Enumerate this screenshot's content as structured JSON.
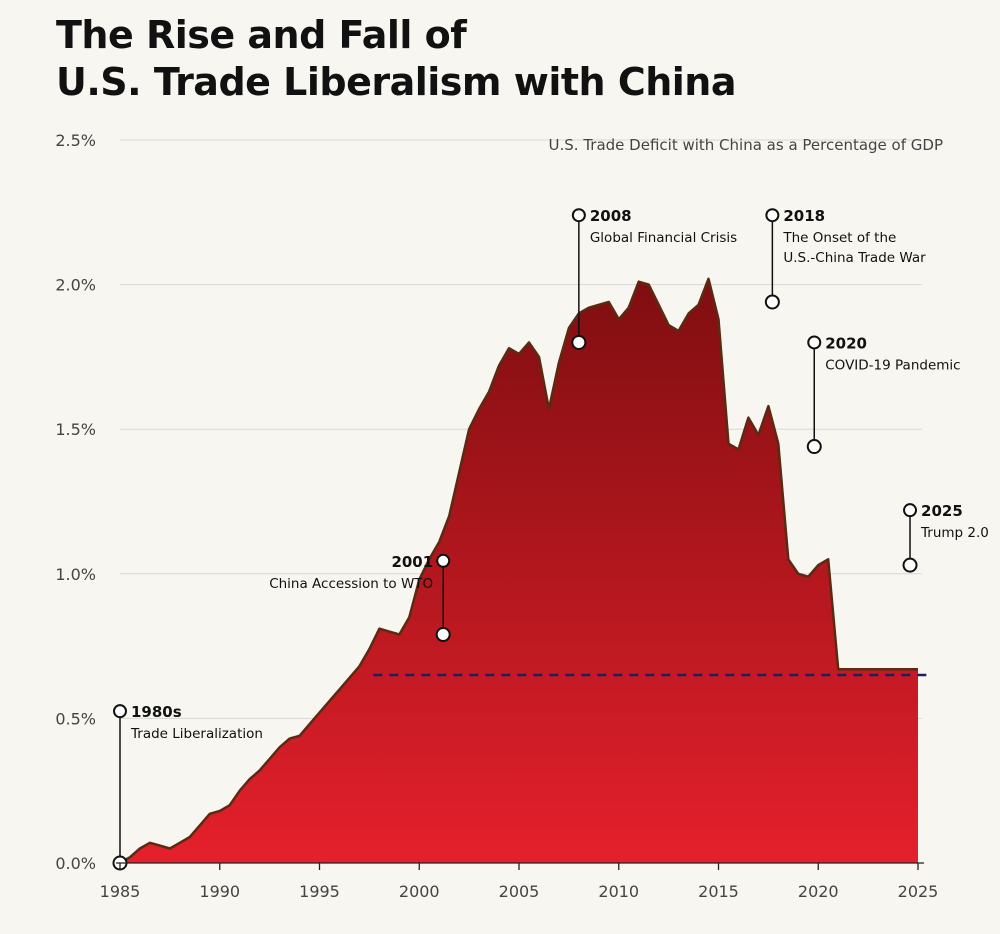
{
  "title_lines": [
    "The Rise and Fall of",
    "U.S. Trade Liberalism with China"
  ],
  "colors": {
    "background": "#f7f6f1",
    "area_top": "#7f0e10",
    "area_bottom": "#e5202c",
    "area_outline": "#5a2a12",
    "reference_line": "#1f1f5f",
    "text": "#111111",
    "axis_text": "#444444",
    "grid": "#d8d8d2"
  },
  "chart_data": {
    "type": "area",
    "subtitle": "U.S. Trade Deficit with China as a Percentage of GDP",
    "xlabel": "",
    "ylabel": "",
    "xlim": [
      1985,
      2025
    ],
    "ylim": [
      0,
      2.5
    ],
    "x_ticks": [
      1985,
      1990,
      1995,
      2000,
      2005,
      2010,
      2015,
      2020,
      2025
    ],
    "y_ticks": [
      {
        "value": 0,
        "label": "0.0%"
      },
      {
        "value": 0.5,
        "label": "0.5%"
      },
      {
        "value": 1.0,
        "label": "1.0%"
      },
      {
        "value": 1.5,
        "label": "1.5%"
      },
      {
        "value": 2.0,
        "label": "2.0%"
      },
      {
        "value": 2.5,
        "label": "2.5%"
      }
    ],
    "grid": "horizontal",
    "series": [
      {
        "x": [
          1985,
          1985.5,
          1986,
          1986.5,
          1987,
          1987.5,
          1988,
          1988.5,
          1989,
          1989.5,
          1990,
          1990.5,
          1991,
          1991.5,
          1992,
          1992.5,
          1993,
          1993.5,
          1994,
          1994.5,
          1995,
          1995.5,
          1996,
          1996.5,
          1997,
          1997.5,
          1998,
          1998.5,
          1999,
          1999.5,
          2000,
          2000.5,
          2001,
          2001.5,
          2002,
          2002.5,
          2003,
          2003.5,
          2004,
          2004.5,
          2005,
          2005.5,
          2006,
          2006.5,
          2007,
          2007.5,
          2008,
          2008.5,
          2009,
          2009.5,
          2010,
          2010.5,
          2011,
          2011.5,
          2012,
          2012.5,
          2013,
          2013.5,
          2014,
          2014.5,
          2015,
          2015.5,
          2016,
          2016.5,
          2017,
          2017.5,
          2018,
          2018.5,
          2019,
          2019.5,
          2020,
          2020.5,
          2021,
          2021.5,
          2022,
          2022.5,
          2023,
          2023.5,
          2024,
          2024.5,
          2025
        ],
        "values": [
          0.0,
          0.02,
          0.05,
          0.07,
          0.06,
          0.05,
          0.07,
          0.09,
          0.13,
          0.17,
          0.18,
          0.2,
          0.25,
          0.29,
          0.32,
          0.36,
          0.4,
          0.43,
          0.44,
          0.48,
          0.52,
          0.56,
          0.6,
          0.64,
          0.68,
          0.74,
          0.81,
          0.8,
          0.79,
          0.85,
          0.98,
          1.05,
          1.11,
          1.2,
          1.35,
          1.5,
          1.57,
          1.63,
          1.72,
          1.78,
          1.76,
          1.8,
          1.75,
          1.57,
          1.73,
          1.85,
          1.9,
          1.92,
          1.93,
          1.94,
          1.88,
          1.92,
          2.01,
          2.0,
          1.93,
          1.86,
          1.84,
          1.9,
          1.93,
          2.02,
          1.88,
          1.45,
          1.43,
          1.54,
          1.48,
          1.58,
          1.45,
          1.05,
          1.0,
          0.99,
          1.03,
          1.05,
          0.67,
          0.67,
          0.67,
          0.67,
          0.67,
          0.67,
          0.67,
          0.67,
          0.67
        ]
      }
    ],
    "reference_line": {
      "value": 0.65,
      "from_x": 1997.7,
      "to_x": 2025.6
    },
    "annotations": [
      {
        "x": 1985.0,
        "y": 0.0,
        "pin_y": 0.525,
        "year": "1980s",
        "label": "Trade Liberalization"
      },
      {
        "x": 2001.2,
        "y": 0.79,
        "pin_y": 1.045,
        "year": "2001",
        "label": "China Accession to WTO"
      },
      {
        "x": 2008.0,
        "y": 1.8,
        "pin_y": 2.24,
        "year": "2008",
        "label": "Global Financial Crisis"
      },
      {
        "x": 2017.7,
        "y": 1.94,
        "pin_y": 2.24,
        "year": "2018",
        "label": "The Onset of the\nU.S.-China Trade War"
      },
      {
        "x": 2019.8,
        "y": 1.44,
        "pin_y": 1.8,
        "year": "2020",
        "label": "COVID-19 Pandemic"
      },
      {
        "x": 2024.6,
        "y": 1.03,
        "pin_y": 1.22,
        "year": "2025",
        "label": "Trump 2.0"
      }
    ]
  }
}
